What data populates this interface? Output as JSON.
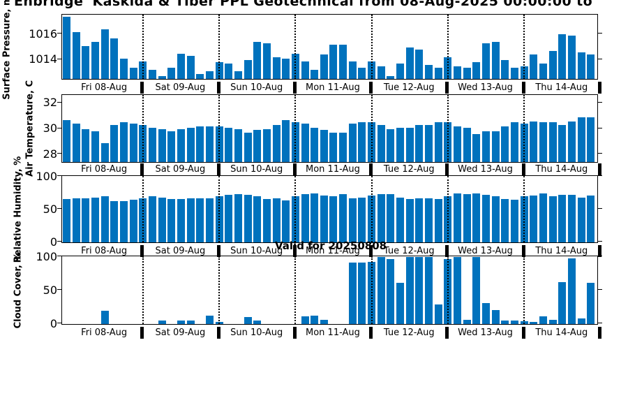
{
  "title": "Enbridge 'Kaskida & Tiber PPL Geotechnical from 08-Aug-2025 00:00:00 to",
  "annotation": "Valid for 20250808",
  "bar_color": "#0072BD",
  "days": [
    "Fri 08-Aug",
    "Sat 09-Aug",
    "Sun 10-Aug",
    "Mon 11-Aug",
    "Tue 12-Aug",
    "Wed 13-Aug",
    "Thu 14-Aug"
  ],
  "chart_data": [
    {
      "type": "bar",
      "ylabel": "Surface Pressure, mb",
      "yticks": [
        1014,
        1016
      ],
      "ylim": [
        1012.5,
        1017.5
      ],
      "bars_per_day": 8,
      "categories": [
        "Fri 08-Aug",
        "Sat 09-Aug",
        "Sun 10-Aug",
        "Mon 11-Aug",
        "Tue 12-Aug",
        "Wed 13-Aug",
        "Thu 14-Aug"
      ],
      "values": [
        1017.4,
        1016.2,
        1015.1,
        1015.4,
        1016.4,
        1015.7,
        1014.1,
        1013.4,
        1013.9,
        1013.2,
        1012.7,
        1013.4,
        1014.5,
        1014.3,
        1012.9,
        1013.1,
        1013.8,
        1013.7,
        1013.1,
        1014.0,
        1015.4,
        1015.3,
        1014.2,
        1014.1,
        1014.5,
        1013.9,
        1013.2,
        1014.4,
        1015.2,
        1015.2,
        1013.9,
        1013.4,
        1013.9,
        1013.5,
        1012.7,
        1013.7,
        1015.0,
        1014.8,
        1013.6,
        1013.4,
        1014.2,
        1013.5,
        1013.4,
        1013.8,
        1015.3,
        1015.4,
        1014.0,
        1013.4,
        1013.5,
        1014.4,
        1013.7,
        1014.7,
        1016.0,
        1015.9,
        1014.6,
        1014.4
      ]
    },
    {
      "type": "bar",
      "ylabel": "Air Temperature, C",
      "yticks": [
        28,
        30,
        32
      ],
      "ylim": [
        27.4,
        32.6
      ],
      "bars_per_day": 8,
      "categories": [
        "Fri 08-Aug",
        "Sat 09-Aug",
        "Sun 10-Aug",
        "Mon 11-Aug",
        "Tue 12-Aug",
        "Wed 13-Aug",
        "Thu 14-Aug"
      ],
      "values": [
        30.7,
        30.4,
        30.0,
        29.8,
        28.9,
        30.3,
        30.5,
        30.4,
        30.3,
        30.1,
        30.0,
        29.8,
        30.0,
        30.1,
        30.2,
        30.2,
        30.2,
        30.1,
        30.0,
        29.7,
        29.9,
        30.0,
        30.3,
        30.7,
        30.5,
        30.4,
        30.1,
        29.9,
        29.7,
        29.7,
        30.4,
        30.5,
        30.5,
        30.3,
        30.0,
        30.1,
        30.1,
        30.3,
        30.3,
        30.5,
        30.5,
        30.2,
        30.1,
        29.6,
        29.8,
        29.8,
        30.2,
        30.5,
        30.4,
        30.6,
        30.5,
        30.5,
        30.3,
        30.6,
        30.9,
        30.9
      ]
    },
    {
      "type": "bar",
      "ylabel": "Relative Humidity, %",
      "yticks": [
        0,
        50,
        100
      ],
      "ylim": [
        0,
        100
      ],
      "bars_per_day": 8,
      "categories": [
        "Fri 08-Aug",
        "Sat 09-Aug",
        "Sun 10-Aug",
        "Mon 11-Aug",
        "Tue 12-Aug",
        "Wed 13-Aug",
        "Thu 14-Aug"
      ],
      "values": [
        66,
        67,
        67,
        68,
        70,
        63,
        63,
        65,
        67,
        70,
        68,
        66,
        66,
        67,
        67,
        67,
        70,
        72,
        73,
        72,
        70,
        66,
        67,
        64,
        70,
        73,
        74,
        71,
        70,
        73,
        67,
        68,
        71,
        73,
        73,
        68,
        66,
        67,
        67,
        66,
        70,
        74,
        73,
        75,
        72,
        70,
        66,
        65,
        70,
        71,
        74,
        70,
        72,
        72,
        68,
        71
      ]
    },
    {
      "type": "bar",
      "ylabel": "Cloud Cover, %",
      "yticks": [
        0,
        50,
        100
      ],
      "ylim": [
        0,
        100
      ],
      "bars_per_day": 8,
      "categories": [
        "Fri 08-Aug",
        "Sat 09-Aug",
        "Sun 10-Aug",
        "Mon 11-Aug",
        "Tue 12-Aug",
        "Wed 13-Aug",
        "Thu 14-Aug"
      ],
      "values": [
        0,
        0,
        0,
        0,
        20,
        0,
        0,
        0,
        0,
        0,
        5,
        0,
        5,
        5,
        0,
        12,
        3,
        0,
        0,
        10,
        5,
        0,
        0,
        0,
        0,
        11,
        12,
        6,
        0,
        0,
        92,
        92,
        93,
        100,
        97,
        61,
        100,
        100,
        100,
        29,
        97,
        100,
        6,
        100,
        31,
        21,
        5,
        5,
        4,
        3,
        11,
        6,
        63,
        98,
        8,
        61
      ]
    }
  ]
}
